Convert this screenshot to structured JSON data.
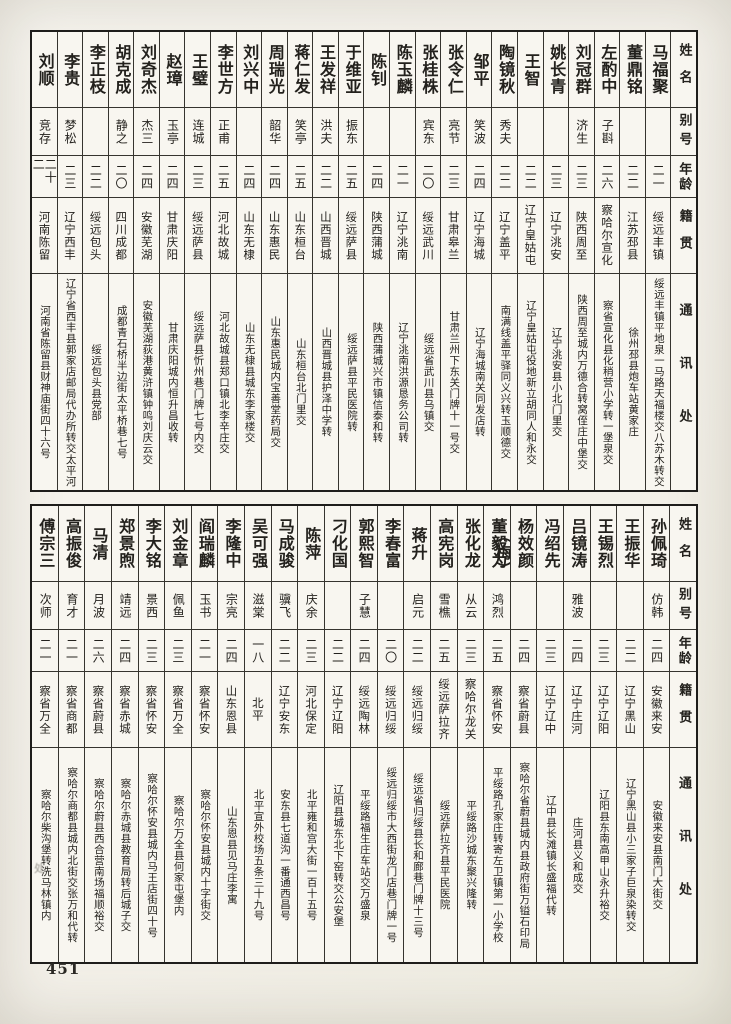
{
  "page_number": "451",
  "margin_mark": "处",
  "headers": {
    "name": "姓名",
    "alias": "别号",
    "age": "年龄",
    "native": "籍贯",
    "addr": "通讯处"
  },
  "top_table": {
    "entries": [
      {
        "name": "马福聚",
        "alias": "",
        "age": "二一",
        "native": "绥远丰镇",
        "addr": "绥远丰镇平地泉一马路天福楼交八苏木转交"
      },
      {
        "name": "董鼎铭",
        "alias": "",
        "age": "二二",
        "native": "江苏邳县",
        "addr": "徐州邳县炮车站黄家庄"
      },
      {
        "name": "左酌中",
        "alias": "子斟",
        "age": "二六",
        "native": "察哈尔宣化",
        "addr": "察省宣化县化稍营小学转一堡泉交"
      },
      {
        "name": "刘冠群",
        "alias": "济生",
        "age": "二三",
        "native": "陕西周至",
        "addr": "陕西周至城内万德合转窝侄庄中堡交"
      },
      {
        "name": "姚长青",
        "alias": "",
        "age": "二三",
        "native": "辽宁洮安",
        "addr": "辽宁洮安县小北门里交"
      },
      {
        "name": "王智",
        "alias": "",
        "age": "二二",
        "native": "辽宁皇姑屯",
        "addr": "辽宁皇姑屯役地新立胡同人和永交"
      },
      {
        "name": "陶镜秋",
        "alias": "秀夫",
        "age": "二二",
        "native": "辽宁盖平",
        "addr": "南满线盖平驿同义兴转玉顺德交"
      },
      {
        "name": "邹平",
        "alias": "笑波",
        "age": "二四",
        "native": "辽宁海城",
        "addr": "辽宁海城南关同发店转"
      },
      {
        "name": "张令仁",
        "alias": "亮节",
        "age": "二三",
        "native": "甘肃皋兰",
        "addr": "甘肃兰州下东关门牌十一号交"
      },
      {
        "name": "张桂株",
        "alias": "宾东",
        "age": "二〇",
        "native": "绥远武川",
        "addr": "绥远省武川县乌镇交"
      },
      {
        "name": "陈玉麟",
        "alias": "",
        "age": "二一",
        "native": "辽宁洮南",
        "addr": "辽宁洮南洪源恳务公司转"
      },
      {
        "name": "陈钊",
        "alias": "",
        "age": "二四",
        "native": "陕西蒲城",
        "addr": "陕西蒲城兴市镇信泰和转"
      },
      {
        "name": "于维亚",
        "alias": "振东",
        "age": "二五",
        "native": "绥远萨县",
        "addr": "绥远萨县平民医院转"
      },
      {
        "name": "王发祥",
        "alias": "洪夫",
        "age": "二二",
        "native": "山西晋城",
        "addr": "山西晋城县护泽中学转"
      },
      {
        "name": "蒋仁发",
        "alias": "笑亭",
        "age": "二五",
        "native": "山东桓台",
        "addr": "山东桓台北门里交"
      },
      {
        "name": "周瑞光",
        "alias": "韶华",
        "age": "二四",
        "native": "山东惠民",
        "addr": "山东惠民城内宝善堂药局交"
      },
      {
        "name": "刘兴中",
        "alias": "",
        "age": "二四",
        "native": "山东无棣",
        "addr": "山东无棣县城东李家楼交"
      },
      {
        "name": "李世方",
        "alias": "正甫",
        "age": "二五",
        "native": "河北故城",
        "addr": "河北故城县郑口镇北李辛庄交"
      },
      {
        "name": "王璧",
        "alias": "连城",
        "age": "二三",
        "native": "绥远萨县",
        "addr": "绥远萨县忻州巷门牌七号内交"
      },
      {
        "name": "赵璋",
        "alias": "玉亭",
        "age": "二四",
        "native": "甘肃庆阳",
        "addr": "甘肃庆阳城内恒升昌收转"
      },
      {
        "name": "刘奇杰",
        "alias": "杰三",
        "age": "二四",
        "native": "安徽芜湖",
        "addr": "安徽芜湖荻港黄浒镇钟鸣刘庆云交"
      },
      {
        "name": "胡克成",
        "alias": "静之",
        "age": "二〇",
        "native": "四川成都",
        "addr": "成都青石桥半边街太平桥巷七号"
      },
      {
        "name": "李正枝",
        "alias": "",
        "age": "二二",
        "native": "绥远包头",
        "addr": "绥远包头县党部"
      },
      {
        "name": "李贵",
        "alias": "梦松",
        "age": "二三",
        "native": "辽宁西丰",
        "addr": "辽宁省西丰县郭家店邮局代办所转交太平河"
      },
      {
        "name": "刘顺",
        "alias": "竞存",
        "age": "二十二",
        "native": "河南陈留",
        "addr": "河南省陈留县财神庙街四十六号"
      }
    ]
  },
  "bottom_table": {
    "entries": [
      {
        "name": "孙佩琦",
        "alias": "仿韩",
        "age": "二四",
        "native": "安徽来安",
        "addr": "安徽来安县南门大街交"
      },
      {
        "name": "王振华",
        "alias": "",
        "age": "二二",
        "native": "辽宁黑山",
        "addr": "辽宁黑山县小三家子巨泉染转交"
      },
      {
        "name": "王锡烈",
        "alias": "",
        "age": "二三",
        "native": "辽宁辽阳",
        "addr": "辽阳县东南高甲山永升裕交"
      },
      {
        "name": "吕镜涛",
        "alias": "雅波",
        "age": "二四",
        "native": "辽宁庄河",
        "addr": "庄河县义和成交"
      },
      {
        "name": "冯绍先",
        "alias": "",
        "age": "二三",
        "native": "辽宁辽中",
        "addr": "辽中县长滩镇长盛福代转"
      },
      {
        "name": "杨效颜",
        "alias": "",
        "age": "二四",
        "native": "察省蔚县",
        "addr": "察哈尔省蔚县城内县政府街万镒石印局"
      },
      {
        "name": "董毅为",
        "note": "（梅）",
        "alias": "鸿烈",
        "age": "二五",
        "native": "察省怀安",
        "addr": "平绥路孔家庄转寄左卫镇第一小学校"
      },
      {
        "name": "张化龙",
        "alias": "从云",
        "age": "二三",
        "native": "察哈尔龙关",
        "addr": "平绥路沙城东聚兴隆转"
      },
      {
        "name": "高宪岗",
        "alias": "雪樵",
        "age": "二五",
        "native": "绥远萨拉齐",
        "addr": "绥远萨拉齐县平民医院"
      },
      {
        "name": "蒋升",
        "alias": "启元",
        "age": "二二",
        "native": "绥远归绥",
        "addr": "绥远省归绥县长和廊巷门牌十三号"
      },
      {
        "name": "李春富",
        "alias": "",
        "age": "二〇",
        "native": "绥远归绥",
        "addr": "绥远归绥市大西街龙门店巷门牌一号"
      },
      {
        "name": "郭熙智",
        "alias": "子慧",
        "age": "二四",
        "native": "绥远陶林",
        "addr": "平绥路福生庄车站交万盛泉"
      },
      {
        "name": "刁化国",
        "alias": "",
        "age": "二二",
        "native": "辽宁辽阳",
        "addr": "辽阳县城东北下窑转交公安堡"
      },
      {
        "name": "陈萍",
        "alias": "庆余",
        "age": "二三",
        "native": "河北保定",
        "addr": "北平雍和宫大街一百十五号"
      },
      {
        "name": "马成骏",
        "alias": "骥飞",
        "age": "二二",
        "native": "辽宁安东",
        "addr": "安东县七道沟一番通西昌号"
      },
      {
        "name": "吴可强",
        "alias": "滋棠",
        "age": "一八",
        "native": "北平",
        "addr": "北平宣外校场五条三十九号"
      },
      {
        "name": "李隆中",
        "alias": "宗亮",
        "age": "二四",
        "native": "山东恩县",
        "addr": "山东恩县见马庄李寓"
      },
      {
        "name": "阎瑞麟",
        "alias": "玉书",
        "age": "二一",
        "native": "察省怀安",
        "addr": "察哈尔怀安县城内十字街交"
      },
      {
        "name": "刘金章",
        "alias": "佩鱼",
        "age": "二三",
        "native": "察省万全",
        "addr": "察哈尔万全县何家屯堡内"
      },
      {
        "name": "李大铭",
        "alias": "景西",
        "age": "二三",
        "native": "察省怀安",
        "addr": "察哈尔怀安县城内马王店街四十号"
      },
      {
        "name": "郑景煦",
        "alias": "靖远",
        "age": "二四",
        "native": "察省赤城",
        "addr": "察哈尔赤城县教育局转后城子交"
      },
      {
        "name": "马清",
        "alias": "月波",
        "age": "二六",
        "native": "察省蔚县",
        "addr": "察哈尔蔚县西合营南场福顺裕交"
      },
      {
        "name": "高振俊",
        "alias": "育才",
        "age": "二一",
        "native": "察省商都",
        "addr": "察哈尔商都县城内北街交张万和代转"
      },
      {
        "name": "傅宗三",
        "alias": "次师",
        "age": "二一",
        "native": "察省万全",
        "addr": "察哈尔柴沟堡转洗马林镇内"
      }
    ]
  }
}
